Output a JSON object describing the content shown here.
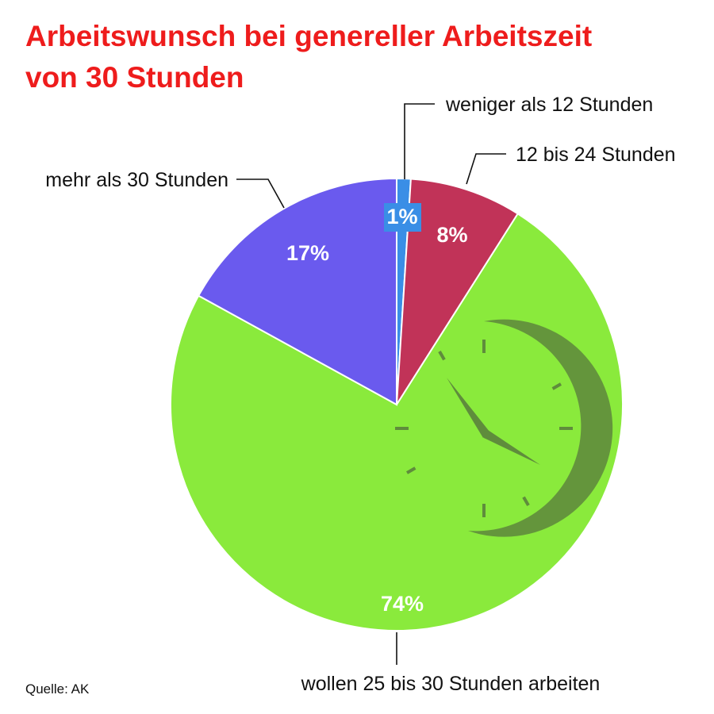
{
  "title": {
    "line1": "Arbeitswunsch bei genereller Arbeitszeit",
    "line2": "von 30 Stunden"
  },
  "source": "Quelle: AK",
  "colors": {
    "title": "#ee1c1c",
    "slice_lt12": "#3a8ee6",
    "slice_12_24": "#c13358",
    "slice_25_30": "#8aea3c",
    "slice_gt30": "#6a5aee",
    "clock_icon": "#5f8c3c"
  },
  "icons": [
    "clock-icon"
  ],
  "chart_data": {
    "type": "pie",
    "title": "Arbeitswunsch bei genereller Arbeitszeit von 30 Stunden",
    "slices": [
      {
        "label": "weniger als 12 Stunden",
        "value": 1,
        "display": "1%",
        "color": "#3a8ee6"
      },
      {
        "label": "12 bis 24 Stunden",
        "value": 8,
        "display": "8%",
        "color": "#c13358"
      },
      {
        "label": "wollen 25 bis 30 Stunden arbeiten",
        "value": 74,
        "display": "74%",
        "color": "#8aea3c"
      },
      {
        "label": "mehr als 30 Stunden",
        "value": 17,
        "display": "17%",
        "color": "#6a5aee"
      }
    ]
  }
}
